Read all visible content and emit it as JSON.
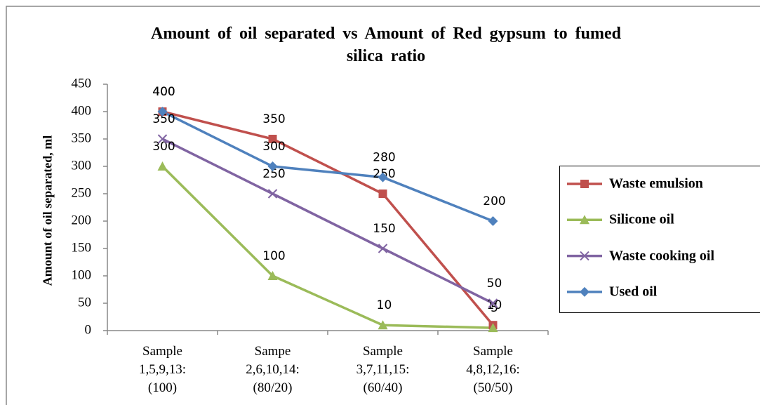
{
  "chart_data": {
    "type": "line",
    "title": "Amount of oil separated vs Amount of Red gypsum to fumed silica ratio",
    "y_label": "Amount of oil separated, ml",
    "categories": [
      "Sample 1,5,9,13: (100)",
      "Sampe 2,6,10,14: (80/20)",
      "Sample 3,7,11,15: (60/40)",
      "Sample 4,8,12,16: (50/50)"
    ],
    "series": [
      {
        "name": "Waste emulsion",
        "color": "#c0504d",
        "marker": "square",
        "values": [
          400,
          350,
          250,
          10
        ]
      },
      {
        "name": "Silicone oil",
        "color": "#9bbb59",
        "marker": "triangle",
        "values": [
          300,
          100,
          10,
          5
        ]
      },
      {
        "name": "Waste cooking oil",
        "color": "#8064a2",
        "marker": "x",
        "values": [
          350,
          250,
          150,
          50
        ]
      },
      {
        "name": "Used oil",
        "color": "#4f81bd",
        "marker": "diamond",
        "values": [
          400,
          300,
          280,
          200
        ]
      }
    ],
    "ylim": [
      0,
      450
    ],
    "yticks": [
      0,
      50,
      100,
      150,
      200,
      250,
      300,
      350,
      400,
      450
    ],
    "grid": false,
    "legend": "right"
  }
}
